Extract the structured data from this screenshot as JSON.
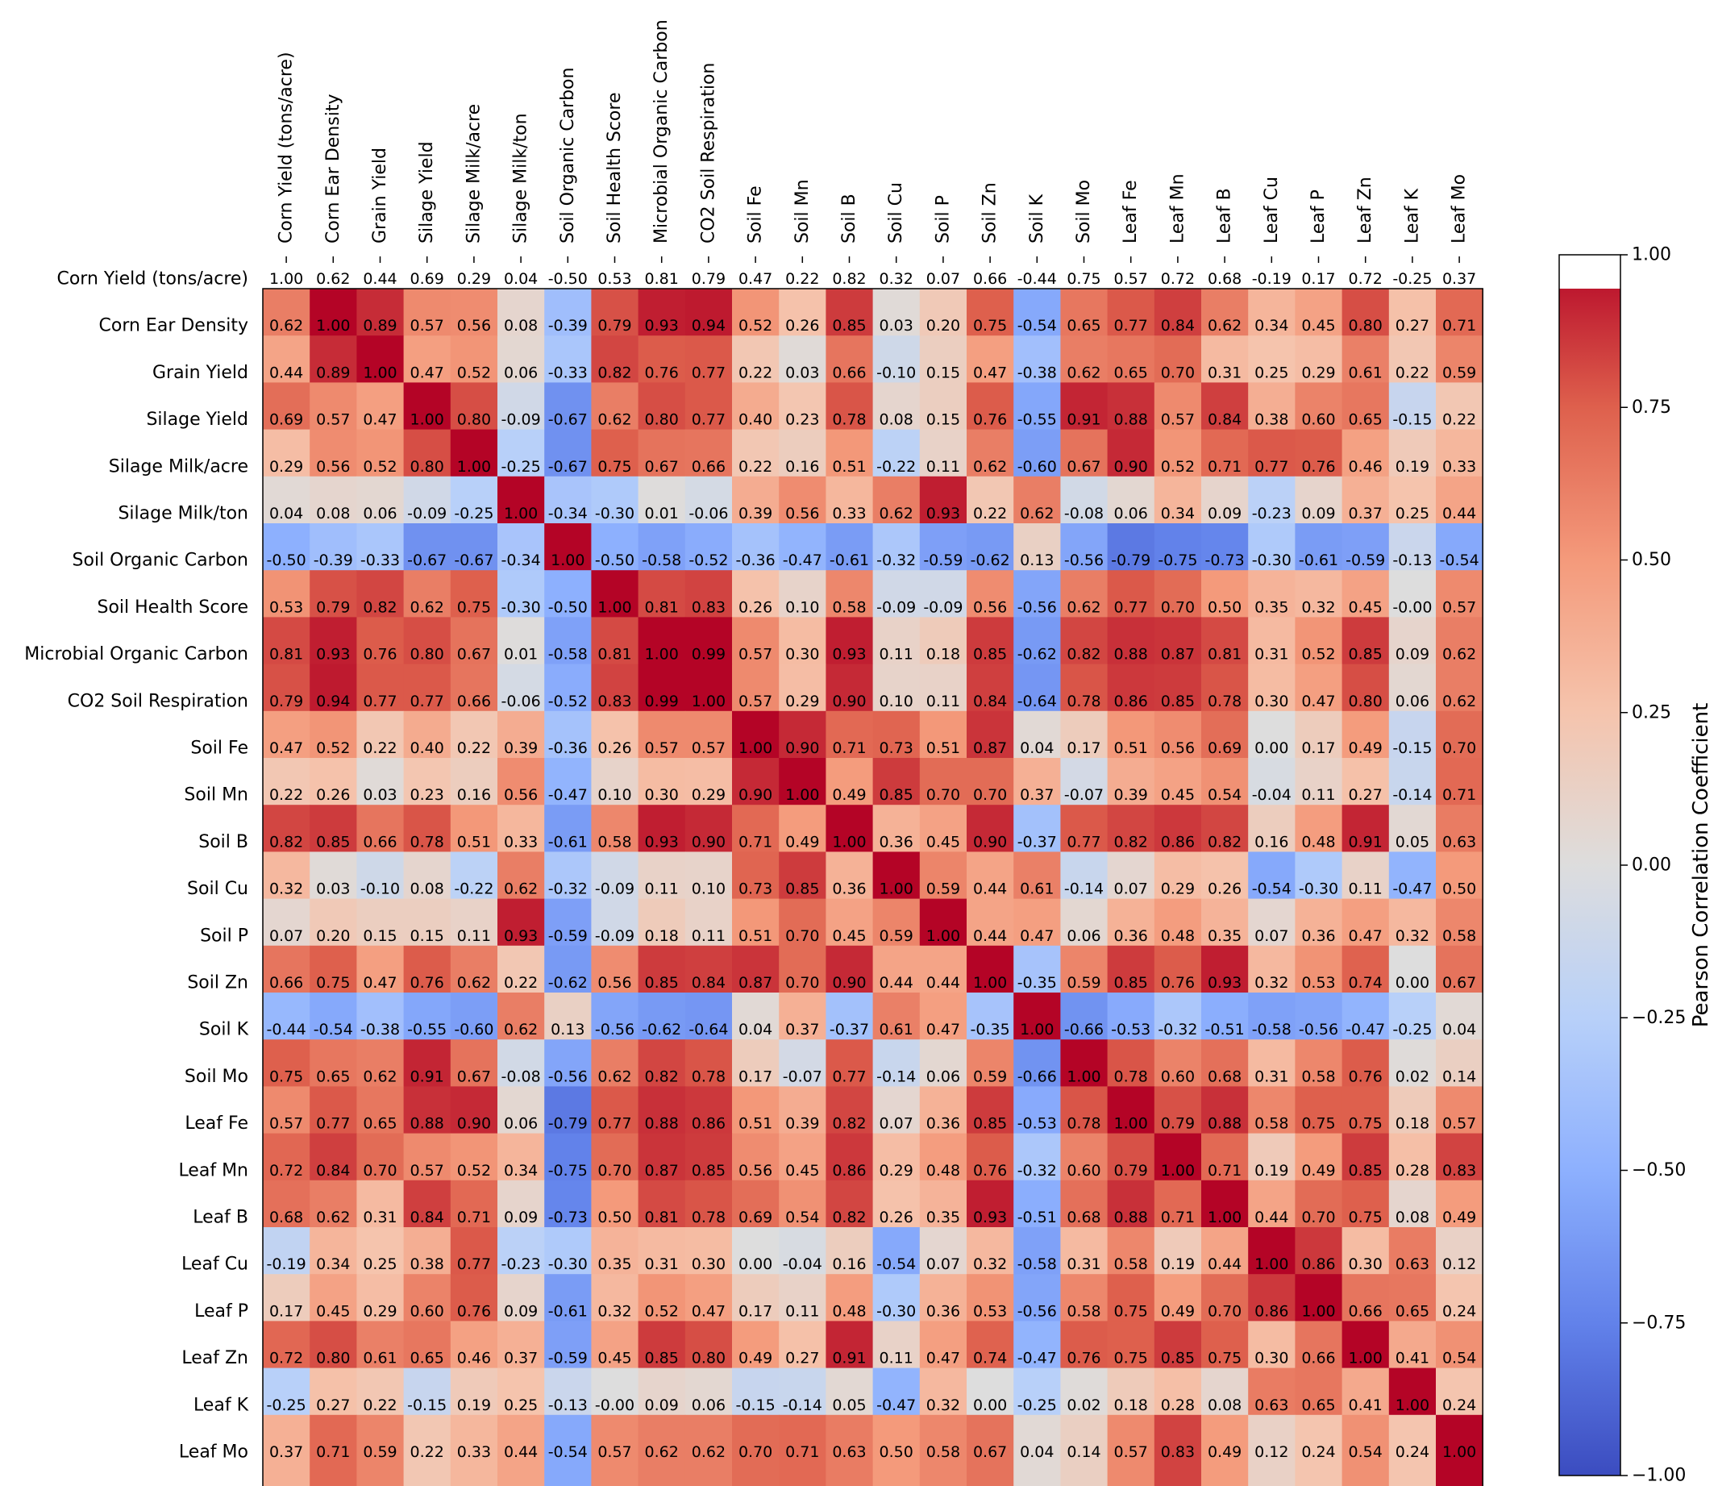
{
  "chart_data": {
    "type": "heatmap",
    "title": "",
    "colormap": "coolwarm",
    "value_range": [
      -1.0,
      1.0
    ],
    "labels": [
      "Corn Yield (tons/acre)",
      "Corn Ear Density",
      "Grain Yield",
      "Silage Yield",
      "Silage Milk/acre",
      "Silage Milk/ton",
      "Soil Organic Carbon",
      "Soil Health Score",
      "Microbial Organic Carbon",
      "CO2 Soil Respiration",
      "Soil Fe",
      "Soil Mn",
      "Soil B",
      "Soil Cu",
      "Soil P",
      "Soil Zn",
      "Soil K",
      "Soil Mo",
      "Leaf Fe",
      "Leaf Mn",
      "Leaf B",
      "Leaf Cu",
      "Leaf P",
      "Leaf Zn",
      "Leaf K",
      "Leaf Mo"
    ],
    "cell_text_shift": "annotations offset one row up relative to color cells; printed text reproduced as shown",
    "display_text_rows": [
      [
        "1.00",
        "0.62",
        "0.44",
        "0.69",
        "0.29",
        "0.04",
        "-0.50",
        "0.53",
        "0.81",
        "0.79",
        "0.47",
        "0.22",
        "0.82",
        "0.32",
        "0.07",
        "0.66",
        "-0.44",
        "0.75",
        "0.57",
        "0.72",
        "0.68",
        "-0.19",
        "0.17",
        "0.72",
        "-0.25",
        "0.37"
      ],
      [
        "0.62",
        "1.00",
        "0.89",
        "0.57",
        "0.56",
        "0.08",
        "-0.39",
        "0.79",
        "0.93",
        "0.94",
        "0.52",
        "0.26",
        "0.85",
        "0.03",
        "0.20",
        "0.75",
        "-0.54",
        "0.65",
        "0.77",
        "0.84",
        "0.62",
        "0.34",
        "0.45",
        "0.80",
        "0.27",
        "0.71"
      ],
      [
        "0.44",
        "0.89",
        "1.00",
        "0.47",
        "0.52",
        "0.06",
        "-0.33",
        "0.82",
        "0.76",
        "0.77",
        "0.22",
        "0.03",
        "0.66",
        "-0.10",
        "0.15",
        "0.47",
        "-0.38",
        "0.62",
        "0.65",
        "0.70",
        "0.31",
        "0.25",
        "0.29",
        "0.61",
        "0.22",
        "0.59"
      ],
      [
        "0.69",
        "0.57",
        "0.47",
        "1.00",
        "0.80",
        "-0.09",
        "-0.67",
        "0.62",
        "0.80",
        "0.77",
        "0.40",
        "0.23",
        "0.78",
        "0.08",
        "0.15",
        "0.76",
        "-0.55",
        "0.91",
        "0.88",
        "0.57",
        "0.84",
        "0.38",
        "0.60",
        "0.65",
        "-0.15",
        "0.22"
      ],
      [
        "0.29",
        "0.56",
        "0.52",
        "0.80",
        "1.00",
        "-0.25",
        "-0.67",
        "0.75",
        "0.67",
        "0.66",
        "0.22",
        "0.16",
        "0.51",
        "-0.22",
        "0.11",
        "0.62",
        "-0.60",
        "0.67",
        "0.90",
        "0.52",
        "0.71",
        "0.77",
        "0.76",
        "0.46",
        "0.19",
        "0.33"
      ],
      [
        "0.04",
        "0.08",
        "0.06",
        "-0.09",
        "-0.25",
        "1.00",
        "-0.34",
        "-0.30",
        "0.01",
        "-0.06",
        "0.39",
        "0.56",
        "0.33",
        "0.62",
        "0.93",
        "0.22",
        "0.62",
        "-0.08",
        "0.06",
        "0.34",
        "0.09",
        "-0.23",
        "0.09",
        "0.37",
        "0.25",
        "0.44"
      ],
      [
        "-0.50",
        "-0.39",
        "-0.33",
        "-0.67",
        "-0.67",
        "-0.34",
        "1.00",
        "-0.50",
        "-0.58",
        "-0.52",
        "-0.36",
        "-0.47",
        "-0.61",
        "-0.32",
        "-0.59",
        "-0.62",
        "0.13",
        "-0.56",
        "-0.79",
        "-0.75",
        "-0.73",
        "-0.30",
        "-0.61",
        "-0.59",
        "-0.13",
        "-0.54"
      ],
      [
        "0.53",
        "0.79",
        "0.82",
        "0.62",
        "0.75",
        "-0.30",
        "-0.50",
        "1.00",
        "0.81",
        "0.83",
        "0.26",
        "0.10",
        "0.58",
        "-0.09",
        "-0.09",
        "0.56",
        "-0.56",
        "0.62",
        "0.77",
        "0.70",
        "0.50",
        "0.35",
        "0.32",
        "0.45",
        "-0.00",
        "0.57"
      ],
      [
        "0.81",
        "0.93",
        "0.76",
        "0.80",
        "0.67",
        "0.01",
        "-0.58",
        "0.81",
        "1.00",
        "0.99",
        "0.57",
        "0.30",
        "0.93",
        "0.11",
        "0.18",
        "0.85",
        "-0.62",
        "0.82",
        "0.88",
        "0.87",
        "0.81",
        "0.31",
        "0.52",
        "0.85",
        "0.09",
        "0.62"
      ],
      [
        "0.79",
        "0.94",
        "0.77",
        "0.77",
        "0.66",
        "-0.06",
        "-0.52",
        "0.83",
        "0.99",
        "1.00",
        "0.57",
        "0.29",
        "0.90",
        "0.10",
        "0.11",
        "0.84",
        "-0.64",
        "0.78",
        "0.86",
        "0.85",
        "0.78",
        "0.30",
        "0.47",
        "0.80",
        "0.06",
        "0.62"
      ],
      [
        "0.47",
        "0.52",
        "0.22",
        "0.40",
        "0.22",
        "0.39",
        "-0.36",
        "0.26",
        "0.57",
        "0.57",
        "1.00",
        "0.90",
        "0.71",
        "0.73",
        "0.51",
        "0.87",
        "0.04",
        "0.17",
        "0.51",
        "0.56",
        "0.69",
        "0.00",
        "0.17",
        "0.49",
        "-0.15",
        "0.70"
      ],
      [
        "0.22",
        "0.26",
        "0.03",
        "0.23",
        "0.16",
        "0.56",
        "-0.47",
        "0.10",
        "0.30",
        "0.29",
        "0.90",
        "1.00",
        "0.49",
        "0.85",
        "0.70",
        "0.70",
        "0.37",
        "-0.07",
        "0.39",
        "0.45",
        "0.54",
        "-0.04",
        "0.11",
        "0.27",
        "-0.14",
        "0.71"
      ],
      [
        "0.82",
        "0.85",
        "0.66",
        "0.78",
        "0.51",
        "0.33",
        "-0.61",
        "0.58",
        "0.93",
        "0.90",
        "0.71",
        "0.49",
        "1.00",
        "0.36",
        "0.45",
        "0.90",
        "-0.37",
        "0.77",
        "0.82",
        "0.86",
        "0.82",
        "0.16",
        "0.48",
        "0.91",
        "0.05",
        "0.63"
      ],
      [
        "0.32",
        "0.03",
        "-0.10",
        "0.08",
        "-0.22",
        "0.62",
        "-0.32",
        "-0.09",
        "0.11",
        "0.10",
        "0.73",
        "0.85",
        "0.36",
        "1.00",
        "0.59",
        "0.44",
        "0.61",
        "-0.14",
        "0.07",
        "0.29",
        "0.26",
        "-0.54",
        "-0.30",
        "0.11",
        "-0.47",
        "0.50"
      ],
      [
        "0.07",
        "0.20",
        "0.15",
        "0.15",
        "0.11",
        "0.93",
        "-0.59",
        "-0.09",
        "0.18",
        "0.11",
        "0.51",
        "0.70",
        "0.45",
        "0.59",
        "1.00",
        "0.44",
        "0.47",
        "0.06",
        "0.36",
        "0.48",
        "0.35",
        "0.07",
        "0.36",
        "0.47",
        "0.32",
        "0.58"
      ],
      [
        "0.66",
        "0.75",
        "0.47",
        "0.76",
        "0.62",
        "0.22",
        "-0.62",
        "0.56",
        "0.85",
        "0.84",
        "0.87",
        "0.70",
        "0.90",
        "0.44",
        "0.44",
        "1.00",
        "-0.35",
        "0.59",
        "0.85",
        "0.76",
        "0.93",
        "0.32",
        "0.53",
        "0.74",
        "0.00",
        "0.67"
      ],
      [
        "-0.44",
        "-0.54",
        "-0.38",
        "-0.55",
        "-0.60",
        "0.62",
        "0.13",
        "-0.56",
        "-0.62",
        "-0.64",
        "0.04",
        "0.37",
        "-0.37",
        "0.61",
        "0.47",
        "-0.35",
        "1.00",
        "-0.66",
        "-0.53",
        "-0.32",
        "-0.51",
        "-0.58",
        "-0.56",
        "-0.47",
        "-0.25",
        "0.04"
      ],
      [
        "0.75",
        "0.65",
        "0.62",
        "0.91",
        "0.67",
        "-0.08",
        "-0.56",
        "0.62",
        "0.82",
        "0.78",
        "0.17",
        "-0.07",
        "0.77",
        "-0.14",
        "0.06",
        "0.59",
        "-0.66",
        "1.00",
        "0.78",
        "0.60",
        "0.68",
        "0.31",
        "0.58",
        "0.76",
        "0.02",
        "0.14"
      ],
      [
        "0.57",
        "0.77",
        "0.65",
        "0.88",
        "0.90",
        "0.06",
        "-0.79",
        "0.77",
        "0.88",
        "0.86",
        "0.51",
        "0.39",
        "0.82",
        "0.07",
        "0.36",
        "0.85",
        "-0.53",
        "0.78",
        "1.00",
        "0.79",
        "0.88",
        "0.58",
        "0.75",
        "0.75",
        "0.18",
        "0.57"
      ],
      [
        "0.72",
        "0.84",
        "0.70",
        "0.57",
        "0.52",
        "0.34",
        "-0.75",
        "0.70",
        "0.87",
        "0.85",
        "0.56",
        "0.45",
        "0.86",
        "0.29",
        "0.48",
        "0.76",
        "-0.32",
        "0.60",
        "0.79",
        "1.00",
        "0.71",
        "0.19",
        "0.49",
        "0.85",
        "0.28",
        "0.83"
      ],
      [
        "0.68",
        "0.62",
        "0.31",
        "0.84",
        "0.71",
        "0.09",
        "-0.73",
        "0.50",
        "0.81",
        "0.78",
        "0.69",
        "0.54",
        "0.82",
        "0.26",
        "0.35",
        "0.93",
        "-0.51",
        "0.68",
        "0.88",
        "0.71",
        "1.00",
        "0.44",
        "0.70",
        "0.75",
        "0.08",
        "0.49"
      ],
      [
        "-0.19",
        "0.34",
        "0.25",
        "0.38",
        "0.77",
        "-0.23",
        "-0.30",
        "0.35",
        "0.31",
        "0.30",
        "0.00",
        "-0.04",
        "0.16",
        "-0.54",
        "0.07",
        "0.32",
        "-0.58",
        "0.31",
        "0.58",
        "0.19",
        "0.44",
        "1.00",
        "0.86",
        "0.30",
        "0.63",
        "0.12"
      ],
      [
        "0.17",
        "0.45",
        "0.29",
        "0.60",
        "0.76",
        "0.09",
        "-0.61",
        "0.32",
        "0.52",
        "0.47",
        "0.17",
        "0.11",
        "0.48",
        "-0.30",
        "0.36",
        "0.53",
        "-0.56",
        "0.58",
        "0.75",
        "0.49",
        "0.70",
        "0.86",
        "1.00",
        "0.66",
        "0.65",
        "0.24"
      ],
      [
        "0.72",
        "0.80",
        "0.61",
        "0.65",
        "0.46",
        "0.37",
        "-0.59",
        "0.45",
        "0.85",
        "0.80",
        "0.49",
        "0.27",
        "0.91",
        "0.11",
        "0.47",
        "0.74",
        "-0.47",
        "0.76",
        "0.75",
        "0.85",
        "0.75",
        "0.30",
        "0.66",
        "1.00",
        "0.41",
        "0.54"
      ],
      [
        "-0.25",
        "0.27",
        "0.22",
        "-0.15",
        "0.19",
        "0.25",
        "-0.13",
        "-0.00",
        "0.09",
        "0.06",
        "-0.15",
        "-0.14",
        "0.05",
        "-0.47",
        "0.32",
        "0.00",
        "-0.25",
        "0.02",
        "0.18",
        "0.28",
        "0.08",
        "0.63",
        "0.65",
        "0.41",
        "1.00",
        "0.24"
      ],
      [
        "0.37",
        "0.71",
        "0.59",
        "0.22",
        "0.33",
        "0.44",
        "-0.54",
        "0.57",
        "0.62",
        "0.62",
        "0.70",
        "0.71",
        "0.63",
        "0.50",
        "0.58",
        "0.67",
        "0.04",
        "0.14",
        "0.57",
        "0.83",
        "0.49",
        "0.12",
        "0.24",
        "0.54",
        "0.24",
        "1.00"
      ]
    ],
    "colorbar": {
      "label": "Pearson Correlation Coefficient",
      "ticks": [
        "1.00",
        "0.75",
        "0.50",
        "0.25",
        "0.00",
        "−0.25",
        "−0.50",
        "−0.75",
        "−1.00"
      ],
      "tick_values": [
        1.0,
        0.75,
        0.5,
        0.25,
        0.0,
        -0.25,
        -0.5,
        -0.75,
        -1.0
      ]
    }
  }
}
